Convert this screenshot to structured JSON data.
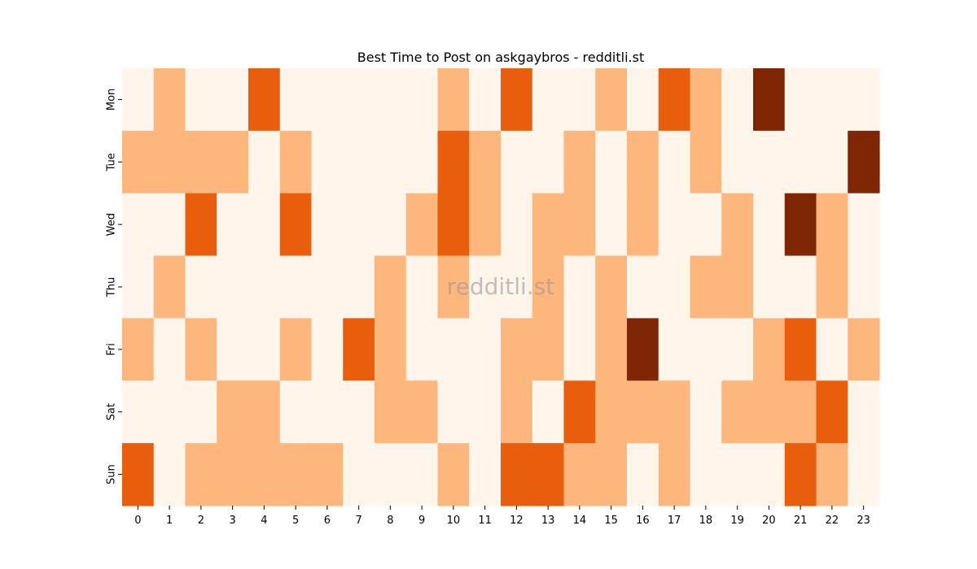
{
  "chart_data": {
    "type": "heatmap",
    "title": "Best Time to Post on askgaybros - redditli.st",
    "watermark": "redditli.st",
    "x_categories": [
      "0",
      "1",
      "2",
      "3",
      "4",
      "5",
      "6",
      "7",
      "8",
      "9",
      "10",
      "11",
      "12",
      "13",
      "14",
      "15",
      "16",
      "17",
      "18",
      "19",
      "20",
      "21",
      "22",
      "23"
    ],
    "y_categories": [
      "Mon",
      "Tue",
      "Wed",
      "Thu",
      "Fri",
      "Sat",
      "Sun"
    ],
    "color_levels": [
      "#fff5eb",
      "#fdb77c",
      "#e95e0d",
      "#7f2704"
    ],
    "matrix": [
      [
        0,
        1,
        0,
        0,
        2,
        0,
        0,
        0,
        0,
        0,
        1,
        0,
        2,
        0,
        0,
        1,
        0,
        2,
        1,
        0,
        3,
        0,
        0,
        0
      ],
      [
        1,
        1,
        1,
        1,
        0,
        1,
        0,
        0,
        0,
        0,
        2,
        1,
        0,
        0,
        1,
        0,
        1,
        0,
        1,
        0,
        0,
        0,
        0,
        3
      ],
      [
        0,
        0,
        2,
        0,
        0,
        2,
        0,
        0,
        0,
        1,
        2,
        1,
        0,
        1,
        1,
        0,
        1,
        0,
        0,
        1,
        0,
        3,
        1,
        0
      ],
      [
        0,
        1,
        0,
        0,
        0,
        0,
        0,
        0,
        1,
        0,
        1,
        0,
        0,
        1,
        0,
        1,
        0,
        0,
        1,
        1,
        0,
        0,
        1,
        0
      ],
      [
        1,
        0,
        1,
        0,
        0,
        1,
        0,
        2,
        1,
        0,
        0,
        0,
        1,
        1,
        0,
        1,
        3,
        0,
        0,
        0,
        1,
        2,
        0,
        1
      ],
      [
        0,
        0,
        0,
        1,
        1,
        0,
        0,
        0,
        1,
        1,
        0,
        0,
        1,
        0,
        2,
        1,
        1,
        1,
        0,
        1,
        1,
        1,
        2,
        0
      ],
      [
        2,
        0,
        1,
        1,
        1,
        1,
        1,
        0,
        0,
        0,
        1,
        0,
        2,
        2,
        1,
        1,
        0,
        1,
        0,
        0,
        0,
        2,
        1,
        0
      ]
    ]
  }
}
